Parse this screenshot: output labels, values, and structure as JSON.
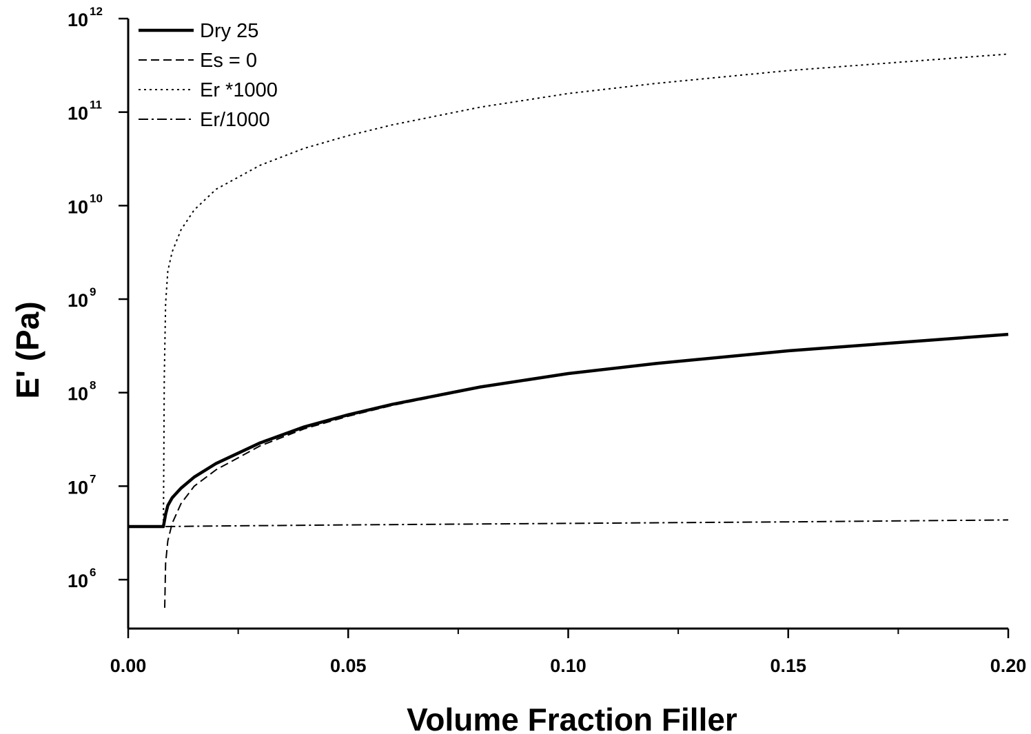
{
  "chart_data": {
    "type": "line",
    "title": "",
    "xlabel": "Volume Fraction Filler",
    "ylabel": "E' (Pa)",
    "xlim": [
      0.0,
      0.2
    ],
    "ylim": [
      300000,
      1000000000000
    ],
    "yscale": "log",
    "grid": false,
    "legend_position": "top-left",
    "x_ticks": [
      "0.00",
      "0.05",
      "0.10",
      "0.15",
      "0.20"
    ],
    "y_ticks": [
      {
        "base": "10",
        "exp": "6"
      },
      {
        "base": "10",
        "exp": "7"
      },
      {
        "base": "10",
        "exp": "8"
      },
      {
        "base": "10",
        "exp": "9"
      },
      {
        "base": "10",
        "exp": "10"
      },
      {
        "base": "10",
        "exp": "11"
      },
      {
        "base": "10",
        "exp": "12"
      }
    ],
    "series": [
      {
        "name": "Dry 25",
        "style": "solid-thick",
        "x": [
          0.0,
          0.008,
          0.0085,
          0.009,
          0.01,
          0.012,
          0.015,
          0.02,
          0.03,
          0.04,
          0.05,
          0.06,
          0.08,
          0.1,
          0.12,
          0.15,
          0.2
        ],
        "y": [
          3700000,
          3700000,
          5000000,
          6200000,
          7500000,
          9500000,
          12500000,
          17500000,
          29000000,
          43000000,
          58000000,
          75000000,
          115000000,
          160000000,
          205000000,
          280000000,
          420000000
        ]
      },
      {
        "name": "Es = 0",
        "style": "dashed",
        "x": [
          0.0083,
          0.0085,
          0.009,
          0.01,
          0.012,
          0.015,
          0.02,
          0.03,
          0.04,
          0.05,
          0.06,
          0.08,
          0.1,
          0.12,
          0.15,
          0.2
        ],
        "y": [
          500000,
          1500000,
          2600000,
          4000000,
          6500000,
          10000000,
          15000000,
          27000000,
          41000000,
          56000000,
          73000000,
          113000000,
          158000000,
          203000000,
          278000000,
          418000000
        ]
      },
      {
        "name": "Er *1000",
        "style": "dotted",
        "x": [
          0.008,
          0.0082,
          0.0085,
          0.009,
          0.01,
          0.012,
          0.015,
          0.02,
          0.03,
          0.04,
          0.05,
          0.06,
          0.08,
          0.1,
          0.12,
          0.15,
          0.2
        ],
        "y": [
          3700000,
          150000000,
          900000000,
          2000000000,
          3200000000,
          5500000000,
          9000000000,
          15000000000,
          27000000000,
          41000000000,
          56000000000,
          73000000000,
          113000000000,
          158000000000,
          203000000000,
          278000000000,
          418000000000
        ]
      },
      {
        "name": "Er/1000",
        "style": "dash-dot",
        "x": [
          0.0085,
          0.02,
          0.05,
          0.1,
          0.15,
          0.2
        ],
        "y": [
          3700000,
          3750000,
          3850000,
          4000000,
          4150000,
          4350000
        ]
      }
    ]
  }
}
